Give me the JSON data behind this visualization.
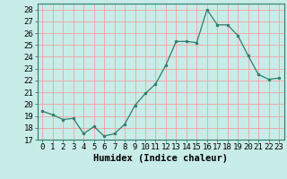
{
  "x": [
    0,
    1,
    2,
    3,
    4,
    5,
    6,
    7,
    8,
    9,
    10,
    11,
    12,
    13,
    14,
    15,
    16,
    17,
    18,
    19,
    20,
    21,
    22,
    23
  ],
  "y": [
    19.4,
    19.1,
    18.7,
    18.8,
    17.5,
    18.1,
    17.3,
    17.5,
    18.3,
    19.9,
    20.9,
    21.7,
    23.3,
    25.3,
    25.3,
    25.2,
    28.0,
    26.7,
    26.7,
    25.8,
    24.1,
    22.5,
    22.1,
    22.2
  ],
  "line_color": "#2d7d6e",
  "marker_color": "#2d7d6e",
  "bg_color": "#c8ece8",
  "grid_color": "#f5a0a0",
  "xlabel": "Humidex (Indice chaleur)",
  "ylim": [
    17,
    28.5
  ],
  "yticks": [
    17,
    18,
    19,
    20,
    21,
    22,
    23,
    24,
    25,
    26,
    27,
    28
  ],
  "xticks": [
    0,
    1,
    2,
    3,
    4,
    5,
    6,
    7,
    8,
    9,
    10,
    11,
    12,
    13,
    14,
    15,
    16,
    17,
    18,
    19,
    20,
    21,
    22,
    23
  ],
  "font_size_label": 7.5,
  "font_size_tick": 6.5
}
